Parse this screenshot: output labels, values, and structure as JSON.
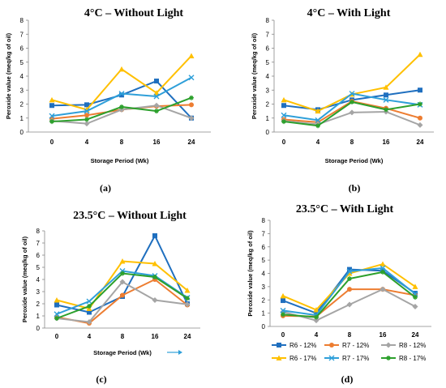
{
  "figure": {
    "panel_labels": [
      "(a)",
      "(b)",
      "(c)",
      "(d)"
    ]
  },
  "legend": {
    "entries": [
      {
        "label": "R6 - 12%",
        "color": "#1f6fbf",
        "marker": "square"
      },
      {
        "label": "R7 - 12%",
        "color": "#ed7d31",
        "marker": "circle"
      },
      {
        "label": "R8 - 12%",
        "color": "#a5a5a5",
        "marker": "diamond"
      },
      {
        "label": "R6 - 17%",
        "color": "#ffc000",
        "marker": "triangle"
      },
      {
        "label": "R7 - 17%",
        "color": "#2e9fd9",
        "marker": "x"
      },
      {
        "label": "R8 - 17%",
        "color": "#2ca02c",
        "marker": "star"
      }
    ]
  },
  "chart_data": [
    {
      "type": "line",
      "title": "4°C – Without Light",
      "xlabel": "Storage Period (Wk)",
      "ylabel": "Peroxide value (meq/kg of oil)",
      "categories": [
        "0",
        "4",
        "8",
        "16",
        "24"
      ],
      "ylim": [
        0,
        8
      ],
      "yticks": [
        0,
        1,
        2,
        3,
        4,
        5,
        6,
        7,
        8
      ],
      "grid": false,
      "series": [
        {
          "name": "R6 - 12%",
          "values": [
            1.9,
            1.95,
            2.65,
            3.65,
            1.0
          ]
        },
        {
          "name": "R7 - 12%",
          "values": [
            0.95,
            1.2,
            1.6,
            1.85,
            1.95
          ]
        },
        {
          "name": "R8 - 12%",
          "values": [
            0.8,
            0.6,
            1.6,
            1.9,
            1.0
          ]
        },
        {
          "name": "R6 - 17%",
          "values": [
            2.3,
            1.6,
            4.5,
            2.8,
            5.45
          ]
        },
        {
          "name": "R7 - 17%",
          "values": [
            1.15,
            1.5,
            2.75,
            2.55,
            3.9
          ]
        },
        {
          "name": "R8 - 17%",
          "values": [
            0.75,
            0.9,
            1.8,
            1.5,
            2.45
          ]
        }
      ]
    },
    {
      "type": "line",
      "title": "4°C – With Light",
      "xlabel": "Storage Period (Wk)",
      "ylabel": "Peroxide value (meq/kg of oil)",
      "categories": [
        "0",
        "4",
        "8",
        "16",
        "24"
      ],
      "ylim": [
        0,
        8
      ],
      "yticks": [
        0,
        1,
        2,
        3,
        4,
        5,
        6,
        7,
        8
      ],
      "grid": false,
      "series": [
        {
          "name": "R6 - 12%",
          "values": [
            1.9,
            1.6,
            2.3,
            2.65,
            3.0
          ]
        },
        {
          "name": "R7 - 12%",
          "values": [
            0.9,
            0.7,
            2.2,
            1.7,
            1.0
          ]
        },
        {
          "name": "R8 - 12%",
          "values": [
            0.8,
            0.55,
            1.4,
            1.45,
            0.5
          ]
        },
        {
          "name": "R6 - 17%",
          "values": [
            2.3,
            1.5,
            2.7,
            3.2,
            5.55
          ]
        },
        {
          "name": "R7 - 17%",
          "values": [
            1.2,
            0.85,
            2.75,
            2.3,
            1.95
          ]
        },
        {
          "name": "R8 - 17%",
          "values": [
            0.75,
            0.45,
            2.15,
            1.6,
            2.0
          ]
        }
      ]
    },
    {
      "type": "line",
      "title": "23.5°C – Without Light",
      "xlabel": "Storage Period (Wk)",
      "ylabel": "Peroxide value (meq/kg of oil)",
      "categories": [
        "0",
        "4",
        "8",
        "16",
        "24"
      ],
      "ylim": [
        0,
        8
      ],
      "yticks": [
        0,
        1,
        2,
        3,
        4,
        5,
        6,
        7,
        8
      ],
      "grid": false,
      "series": [
        {
          "name": "R6 - 12%",
          "values": [
            1.9,
            1.3,
            2.6,
            7.6,
            2.0
          ]
        },
        {
          "name": "R7 - 12%",
          "values": [
            0.9,
            0.4,
            2.7,
            4.0,
            1.9
          ]
        },
        {
          "name": "R8 - 12%",
          "values": [
            0.8,
            0.5,
            3.8,
            2.3,
            1.95
          ]
        },
        {
          "name": "R6 - 17%",
          "values": [
            2.3,
            1.6,
            5.5,
            5.3,
            3.1
          ]
        },
        {
          "name": "R7 - 17%",
          "values": [
            1.15,
            2.2,
            4.7,
            4.3,
            2.5
          ]
        },
        {
          "name": "R8 - 17%",
          "values": [
            0.8,
            1.8,
            4.5,
            4.2,
            2.45
          ]
        }
      ]
    },
    {
      "type": "line",
      "title": "23.5°C – With Light",
      "xlabel": "",
      "ylabel": "Peroxide value (meq/kg of oil)",
      "categories": [
        "0",
        "4",
        "8",
        "16",
        "24"
      ],
      "ylim": [
        0,
        8
      ],
      "yticks": [
        0,
        1,
        2,
        3,
        4,
        5,
        6,
        7,
        8
      ],
      "grid": false,
      "series": [
        {
          "name": "R6 - 12%",
          "values": [
            1.95,
            1.0,
            4.3,
            4.2,
            2.5
          ]
        },
        {
          "name": "R7 - 12%",
          "values": [
            0.8,
            0.75,
            2.8,
            2.8,
            2.35
          ]
        },
        {
          "name": "R8 - 12%",
          "values": [
            1.1,
            0.45,
            1.65,
            2.8,
            1.5
          ]
        },
        {
          "name": "R6 - 17%",
          "values": [
            2.3,
            1.25,
            4.0,
            4.7,
            3.0
          ]
        },
        {
          "name": "R7 - 17%",
          "values": [
            1.2,
            0.85,
            4.15,
            4.4,
            2.45
          ]
        },
        {
          "name": "R8 - 17%",
          "values": [
            0.9,
            0.7,
            3.6,
            4.1,
            2.2
          ]
        }
      ]
    }
  ]
}
